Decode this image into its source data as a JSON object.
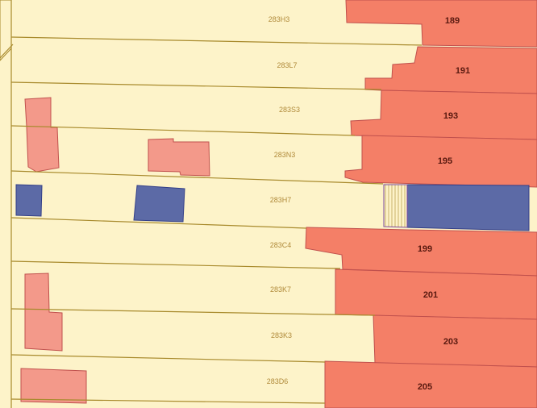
{
  "colors": {
    "parcel_fill": "#fdf3c9",
    "parcel_line": "#a88a2c",
    "building_front": "#f47f67",
    "building_outline": "#c0504d",
    "outbuilding": "#f3998a",
    "blue_building": "#5c6aa6",
    "blue_outline": "#333f88",
    "hatch_line": "#c9b36b"
  },
  "parcels": [
    {
      "id": "283H3",
      "house_number": "189"
    },
    {
      "id": "283L7",
      "house_number": "191"
    },
    {
      "id": "283S3",
      "house_number": "193"
    },
    {
      "id": "283N3",
      "house_number": "195"
    },
    {
      "id": "283H7",
      "house_number": ""
    },
    {
      "id": "283C4",
      "house_number": "199"
    },
    {
      "id": "283K7",
      "house_number": "201"
    },
    {
      "id": "283K3",
      "house_number": "203"
    },
    {
      "id": "283D6",
      "house_number": "205"
    }
  ]
}
